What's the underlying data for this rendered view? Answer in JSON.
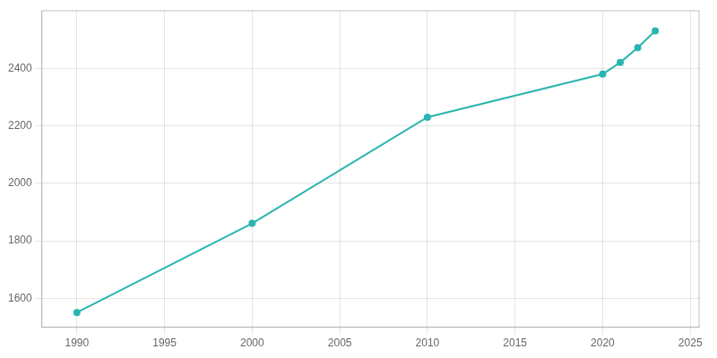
{
  "chart_data": {
    "type": "line",
    "x": [
      1990,
      2000,
      2010,
      2020,
      2021,
      2022,
      2023
    ],
    "values": [
      1551,
      1861,
      2230,
      2380,
      2420,
      2472,
      2530
    ],
    "color": "#2ab5b0",
    "marker": "circle",
    "xlim": [
      1988,
      2025.5
    ],
    "xticks": [
      1990,
      1995,
      2000,
      2005,
      2010,
      2015,
      2020,
      2025
    ],
    "ylim": [
      1500,
      2600
    ],
    "yticks": [
      1600,
      1800,
      2000,
      2200,
      2400
    ],
    "grid": true
  }
}
